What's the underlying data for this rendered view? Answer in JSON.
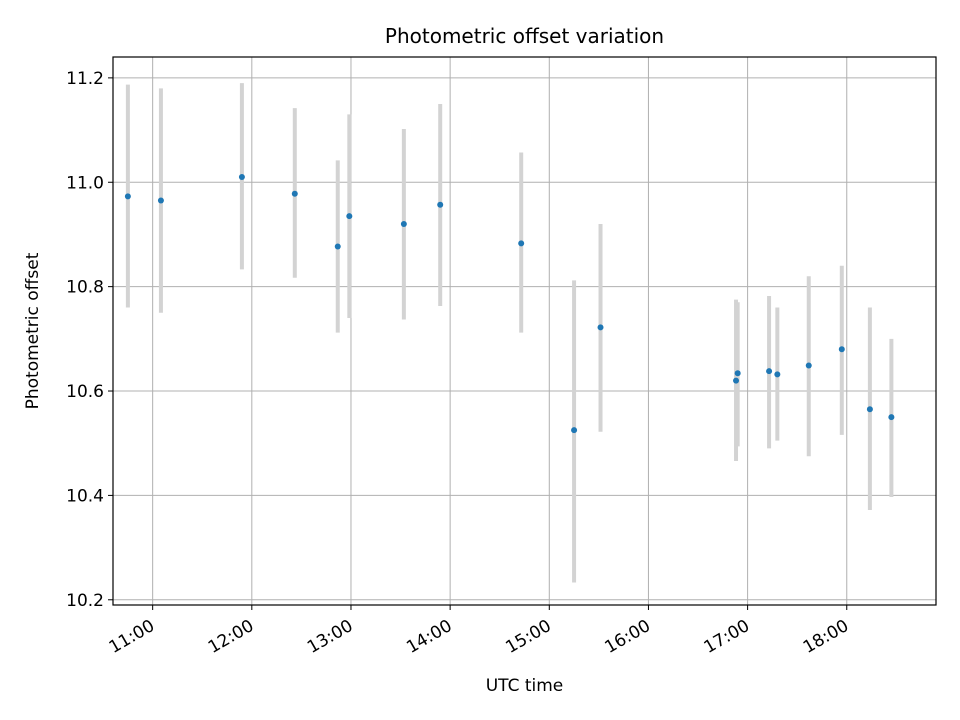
{
  "chart_data": {
    "type": "scatter",
    "title": "Photometric offset variation",
    "xlabel": "UTC time",
    "ylabel": "Photometric offset",
    "x_unit": "time (HH:MM)",
    "xlim": [
      "10:36",
      "18:54"
    ],
    "ylim": [
      10.19,
      11.24
    ],
    "x_ticks": [
      "11:00",
      "12:00",
      "13:00",
      "14:00",
      "15:00",
      "16:00",
      "17:00",
      "18:00"
    ],
    "y_ticks": [
      "10.2",
      "10.4",
      "10.6",
      "10.8",
      "11.0",
      "11.2"
    ],
    "grid": true,
    "colors": {
      "point": "#1f77b4",
      "errorbar": "#d3d3d3",
      "grid": "#b0b0b0"
    },
    "series": [
      {
        "points": [
          {
            "x": "10:45",
            "y": 10.973,
            "ylow": 10.76,
            "yhigh": 11.187
          },
          {
            "x": "11:05",
            "y": 10.965,
            "ylow": 10.75,
            "yhigh": 11.18
          },
          {
            "x": "11:54",
            "y": 11.01,
            "ylow": 10.833,
            "yhigh": 11.19
          },
          {
            "x": "12:26",
            "y": 10.978,
            "ylow": 10.817,
            "yhigh": 11.142
          },
          {
            "x": "12:52",
            "y": 10.877,
            "ylow": 10.712,
            "yhigh": 11.042
          },
          {
            "x": "12:59",
            "y": 10.935,
            "ylow": 10.74,
            "yhigh": 11.13
          },
          {
            "x": "13:32",
            "y": 10.92,
            "ylow": 10.737,
            "yhigh": 11.102
          },
          {
            "x": "13:54",
            "y": 10.957,
            "ylow": 10.763,
            "yhigh": 11.15
          },
          {
            "x": "14:43",
            "y": 10.883,
            "ylow": 10.712,
            "yhigh": 11.057
          },
          {
            "x": "15:15",
            "y": 10.525,
            "ylow": 10.233,
            "yhigh": 10.812
          },
          {
            "x": "15:31",
            "y": 10.722,
            "ylow": 10.522,
            "yhigh": 10.92
          },
          {
            "x": "16:53",
            "y": 10.62,
            "ylow": 10.466,
            "yhigh": 10.775
          },
          {
            "x": "16:54",
            "y": 10.634,
            "ylow": 10.494,
            "yhigh": 10.77
          },
          {
            "x": "17:13",
            "y": 10.638,
            "ylow": 10.49,
            "yhigh": 10.782
          },
          {
            "x": "17:18",
            "y": 10.632,
            "ylow": 10.505,
            "yhigh": 10.76
          },
          {
            "x": "17:37",
            "y": 10.649,
            "ylow": 10.475,
            "yhigh": 10.82
          },
          {
            "x": "17:57",
            "y": 10.68,
            "ylow": 10.516,
            "yhigh": 10.84
          },
          {
            "x": "18:14",
            "y": 10.565,
            "ylow": 10.372,
            "yhigh": 10.76
          },
          {
            "x": "18:27",
            "y": 10.55,
            "ylow": 10.397,
            "yhigh": 10.7
          }
        ]
      }
    ]
  }
}
